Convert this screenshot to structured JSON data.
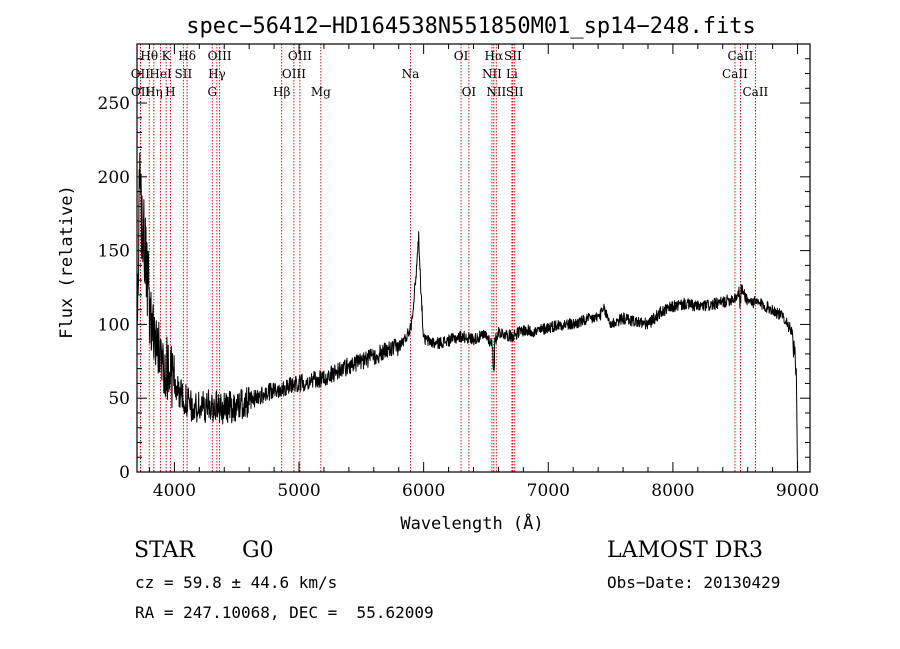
{
  "chart_data": {
    "type": "line",
    "title": "spec−56412−HD164538N551850M01_sp14−248.fits",
    "xlabel": "Wavelength (Å)",
    "ylabel": "Flux (relative)",
    "xlim": [
      3700,
      9100
    ],
    "ylim": [
      0,
      290
    ],
    "xticks": [
      4000,
      5000,
      6000,
      7000,
      8000,
      9000
    ],
    "yticks": [
      0,
      50,
      100,
      150,
      200,
      250
    ],
    "grid": false,
    "line_color": "#000000",
    "marker_color": "#cc0000",
    "spectrum_anchors": {
      "x": [
        3700,
        3720,
        3740,
        3760,
        3780,
        3800,
        3830,
        3860,
        3900,
        3950,
        4000,
        4050,
        4100,
        4150,
        4200,
        4300,
        4400,
        4500,
        4600,
        4700,
        4800,
        4900,
        5000,
        5100,
        5200,
        5300,
        5400,
        5500,
        5600,
        5700,
        5800,
        5850,
        5880,
        5900,
        5920,
        5940,
        5960,
        5980,
        6000,
        6100,
        6200,
        6300,
        6400,
        6500,
        6560,
        6600,
        6700,
        6800,
        6900,
        7000,
        7100,
        7200,
        7300,
        7400,
        7450,
        7500,
        7600,
        7700,
        7800,
        7900,
        8000,
        8100,
        8200,
        8300,
        8400,
        8500,
        8550,
        8600,
        8700,
        8800,
        8900,
        8950,
        8990,
        9000
      ],
      "y": [
        75,
        190,
        170,
        150,
        130,
        110,
        95,
        85,
        75,
        70,
        60,
        52,
        48,
        42,
        44,
        45,
        43,
        45,
        48,
        52,
        55,
        58,
        60,
        62,
        63,
        68,
        72,
        75,
        78,
        82,
        85,
        90,
        95,
        100,
        115,
        135,
        160,
        120,
        90,
        87,
        89,
        92,
        90,
        93,
        85,
        95,
        92,
        96,
        95,
        98,
        100,
        100,
        103,
        105,
        110,
        100,
        104,
        102,
        100,
        108,
        112,
        114,
        112,
        113,
        115,
        118,
        124,
        116,
        114,
        110,
        104,
        95,
        70,
        0
      ]
    },
    "line_markers": [
      {
        "name": "OII",
        "wavelength": 3727,
        "row": 2
      },
      {
        "name": "OII",
        "wavelength": 3729,
        "row": 3
      },
      {
        "name": "Hθ",
        "wavelength": 3798,
        "row": 1
      },
      {
        "name": "Hη",
        "wavelength": 3835,
        "row": 3
      },
      {
        "name": "HeI",
        "wavelength": 3889,
        "row": 2
      },
      {
        "name": "K",
        "wavelength": 3934,
        "row": 1
      },
      {
        "name": "H",
        "wavelength": 3968,
        "row": 3
      },
      {
        "name": "SII",
        "wavelength": 4072,
        "row": 2
      },
      {
        "name": "Hδ",
        "wavelength": 4102,
        "row": 1
      },
      {
        "name": "G",
        "wavelength": 4304,
        "row": 3
      },
      {
        "name": "Hγ",
        "wavelength": 4341,
        "row": 2
      },
      {
        "name": "OIII",
        "wavelength": 4363,
        "row": 1
      },
      {
        "name": "Hβ",
        "wavelength": 4861,
        "row": 3
      },
      {
        "name": "OIII",
        "wavelength": 4959,
        "row": 2
      },
      {
        "name": "OIII",
        "wavelength": 5007,
        "row": 1
      },
      {
        "name": "Mg",
        "wavelength": 5175,
        "row": 3
      },
      {
        "name": "Na",
        "wavelength": 5894,
        "row": 2
      },
      {
        "name": "OI",
        "wavelength": 6300,
        "row": 1
      },
      {
        "name": "OI",
        "wavelength": 6363,
        "row": 3
      },
      {
        "name": "NII",
        "wavelength": 6548,
        "row": 2
      },
      {
        "name": "Hα",
        "wavelength": 6563,
        "row": 1
      },
      {
        "name": "NII",
        "wavelength": 6583,
        "row": 3
      },
      {
        "name": "Li",
        "wavelength": 6708,
        "row": 2
      },
      {
        "name": "SII",
        "wavelength": 6716,
        "row": 1
      },
      {
        "name": "SII",
        "wavelength": 6731,
        "row": 3
      },
      {
        "name": "CaII",
        "wavelength": 8498,
        "row": 2
      },
      {
        "name": "CaII",
        "wavelength": 8542,
        "row": 1
      },
      {
        "name": "CaII",
        "wavelength": 8662,
        "row": 3
      }
    ]
  },
  "info": {
    "object_class": "STAR",
    "subclass": "G0",
    "survey": "LAMOST DR3",
    "cz": "cz = 59.8 ± 44.6 km/s",
    "obs_date": "Obs−Date: 20130429",
    "coords": "RA = 247.10068, DEC =  55.62009"
  }
}
